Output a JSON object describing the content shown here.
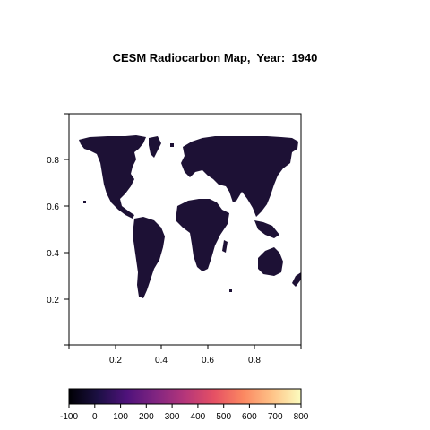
{
  "title": "CESM Radiocarbon Map,  Year:  1940",
  "map": {
    "x_ticks": [
      "0.2",
      "0.4",
      "0.6",
      "0.8"
    ],
    "y_ticks": [
      "0.2",
      "0.4",
      "0.6",
      "0.8"
    ],
    "land_color": "#1d1135",
    "xlim": [
      0,
      1
    ],
    "ylim": [
      0,
      1
    ]
  },
  "colorbar": {
    "ticks": [
      "-100",
      "0",
      "100",
      "200",
      "300",
      "400",
      "500",
      "600",
      "700",
      "800"
    ],
    "range": [
      -100,
      800
    ],
    "colors": [
      "#000004",
      "#1c1044",
      "#4f127b",
      "#812581",
      "#b5367a",
      "#e55064",
      "#fb8761",
      "#fec287",
      "#fcfdbf"
    ]
  }
}
